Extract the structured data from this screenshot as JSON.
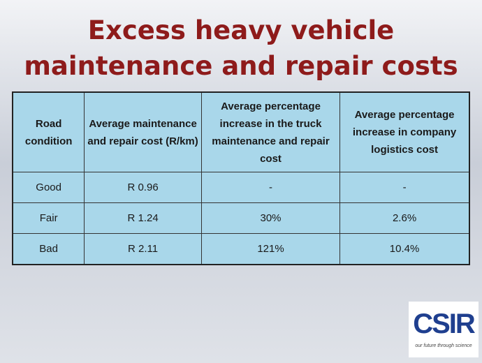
{
  "header": {
    "title": "Excess heavy vehicle maintenance and repair costs"
  },
  "table": {
    "columns": [
      "Road condition",
      "Average maintenance and repair cost (R/km)",
      "Average percentage increase in the truck maintenance and repair cost",
      "Average percentage increase in company logistics cost"
    ],
    "rows": [
      [
        "Good",
        "R 0.96",
        "-",
        "-"
      ],
      [
        "Fair",
        "R 1.24",
        "30%",
        "2.6%"
      ],
      [
        "Bad",
        "R 2.11",
        "121%",
        "10.4%"
      ]
    ]
  },
  "logo": {
    "mark": "CSIR",
    "tagline": "our future through science"
  }
}
